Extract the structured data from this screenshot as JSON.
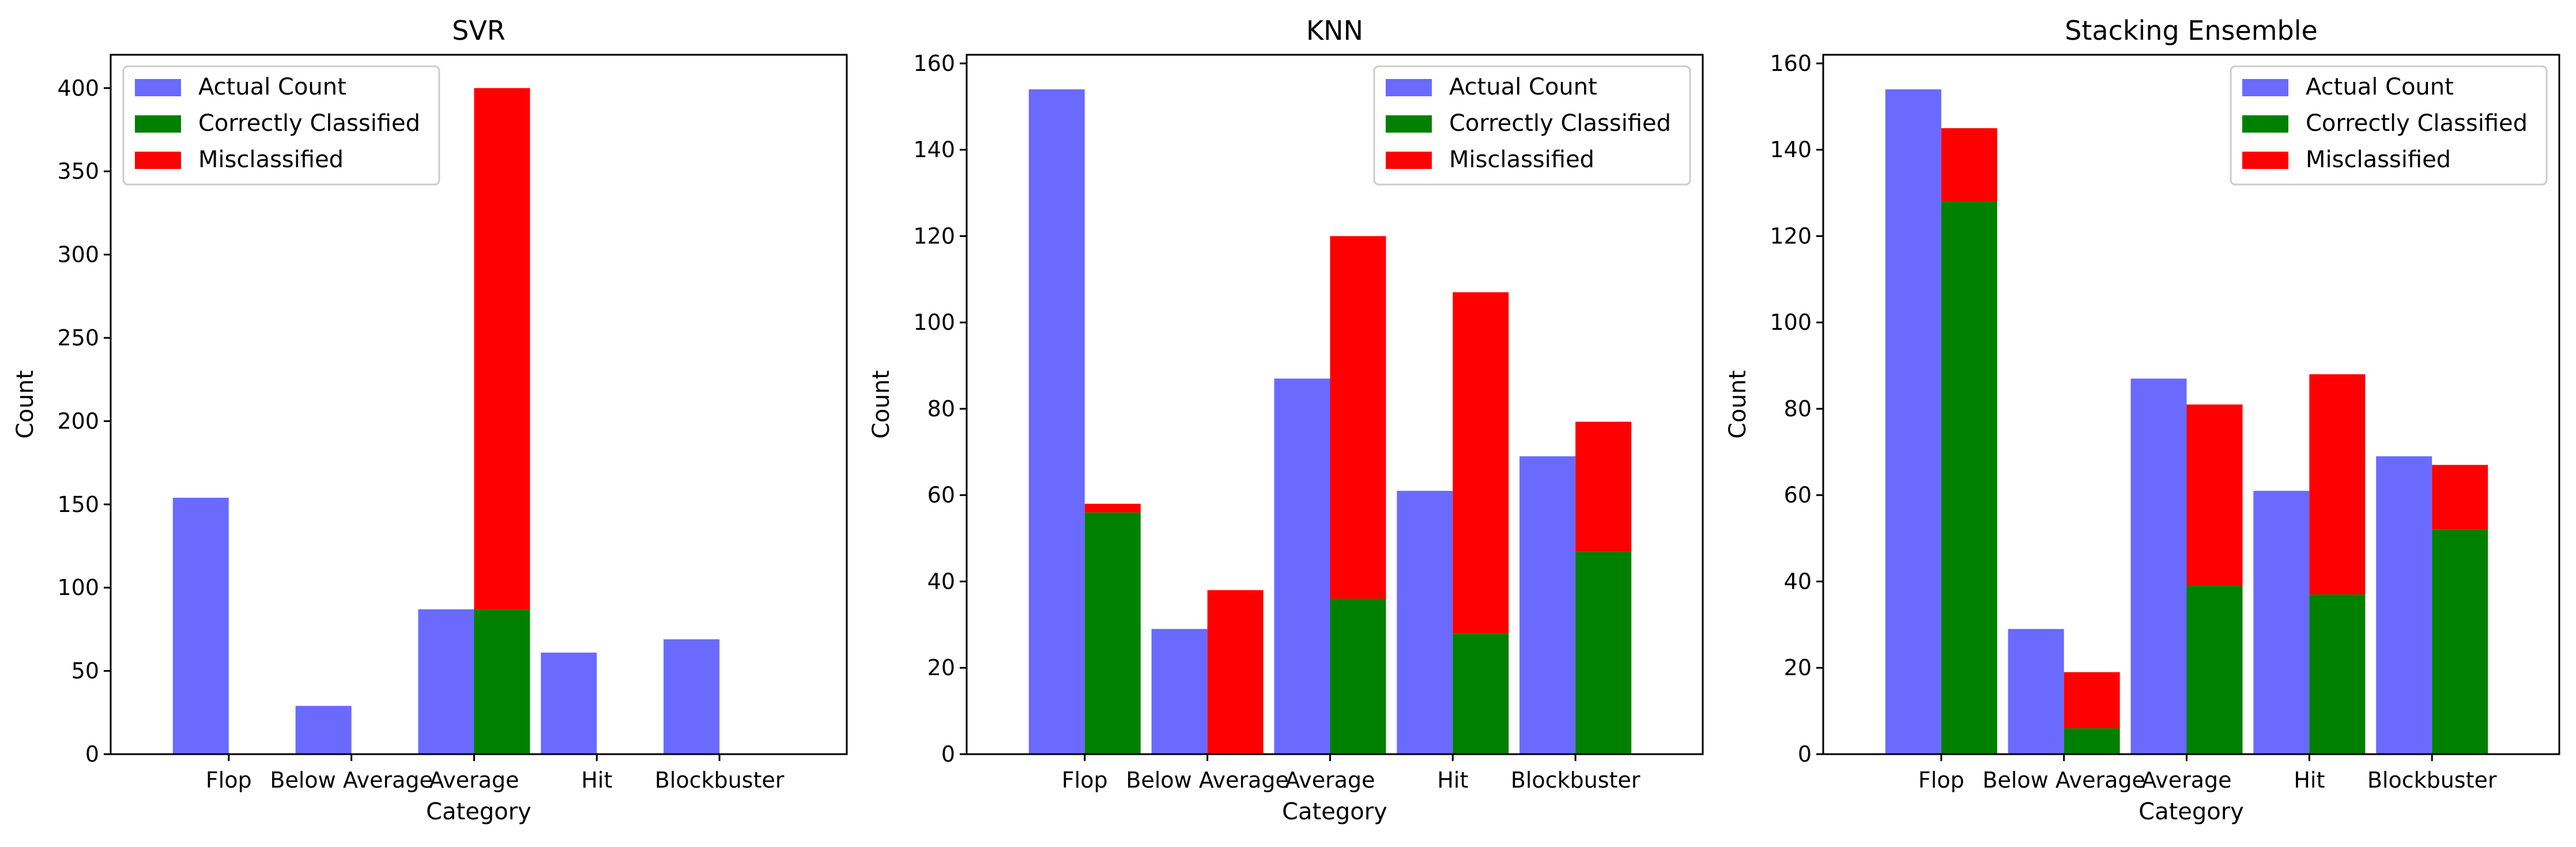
{
  "colors": {
    "actual": "#6a6aff",
    "correct": "#008000",
    "misclassified": "#ff0000"
  },
  "chart_data": [
    {
      "type": "bar",
      "title": "SVR",
      "xlabel": "Category",
      "ylabel": "Count",
      "ylim": [
        0,
        420
      ],
      "yticks": [
        0,
        50,
        100,
        150,
        200,
        250,
        300,
        350,
        400
      ],
      "legend_position": "top-left",
      "categories": [
        "Flop",
        "Below Average",
        "Average",
        "Hit",
        "Blockbuster"
      ],
      "series": [
        {
          "name": "Actual Count",
          "values": [
            154,
            29,
            87,
            61,
            69
          ]
        },
        {
          "name": "Correctly Classified",
          "values": [
            0,
            0,
            87,
            0,
            0
          ]
        },
        {
          "name": "Misclassified",
          "values": [
            0,
            0,
            313,
            0,
            0
          ]
        }
      ]
    },
    {
      "type": "bar",
      "title": "KNN",
      "xlabel": "Category",
      "ylabel": "Count",
      "ylim": [
        0,
        162
      ],
      "yticks": [
        0,
        20,
        40,
        60,
        80,
        100,
        120,
        140,
        160
      ],
      "legend_position": "top-right",
      "categories": [
        "Flop",
        "Below Average",
        "Average",
        "Hit",
        "Blockbuster"
      ],
      "series": [
        {
          "name": "Actual Count",
          "values": [
            154,
            29,
            87,
            61,
            69
          ]
        },
        {
          "name": "Correctly Classified",
          "values": [
            56,
            0,
            36,
            28,
            47
          ]
        },
        {
          "name": "Misclassified",
          "values": [
            2,
            38,
            84,
            79,
            30
          ]
        }
      ]
    },
    {
      "type": "bar",
      "title": "Stacking Ensemble",
      "xlabel": "Category",
      "ylabel": "Count",
      "ylim": [
        0,
        162
      ],
      "yticks": [
        0,
        20,
        40,
        60,
        80,
        100,
        120,
        140,
        160
      ],
      "legend_position": "top-right",
      "categories": [
        "Flop",
        "Below Average",
        "Average",
        "Hit",
        "Blockbuster"
      ],
      "series": [
        {
          "name": "Actual Count",
          "values": [
            154,
            29,
            87,
            61,
            69
          ]
        },
        {
          "name": "Correctly Classified",
          "values": [
            128,
            6,
            39,
            37,
            52
          ]
        },
        {
          "name": "Misclassified",
          "values": [
            17,
            13,
            42,
            51,
            15
          ]
        }
      ]
    }
  ]
}
